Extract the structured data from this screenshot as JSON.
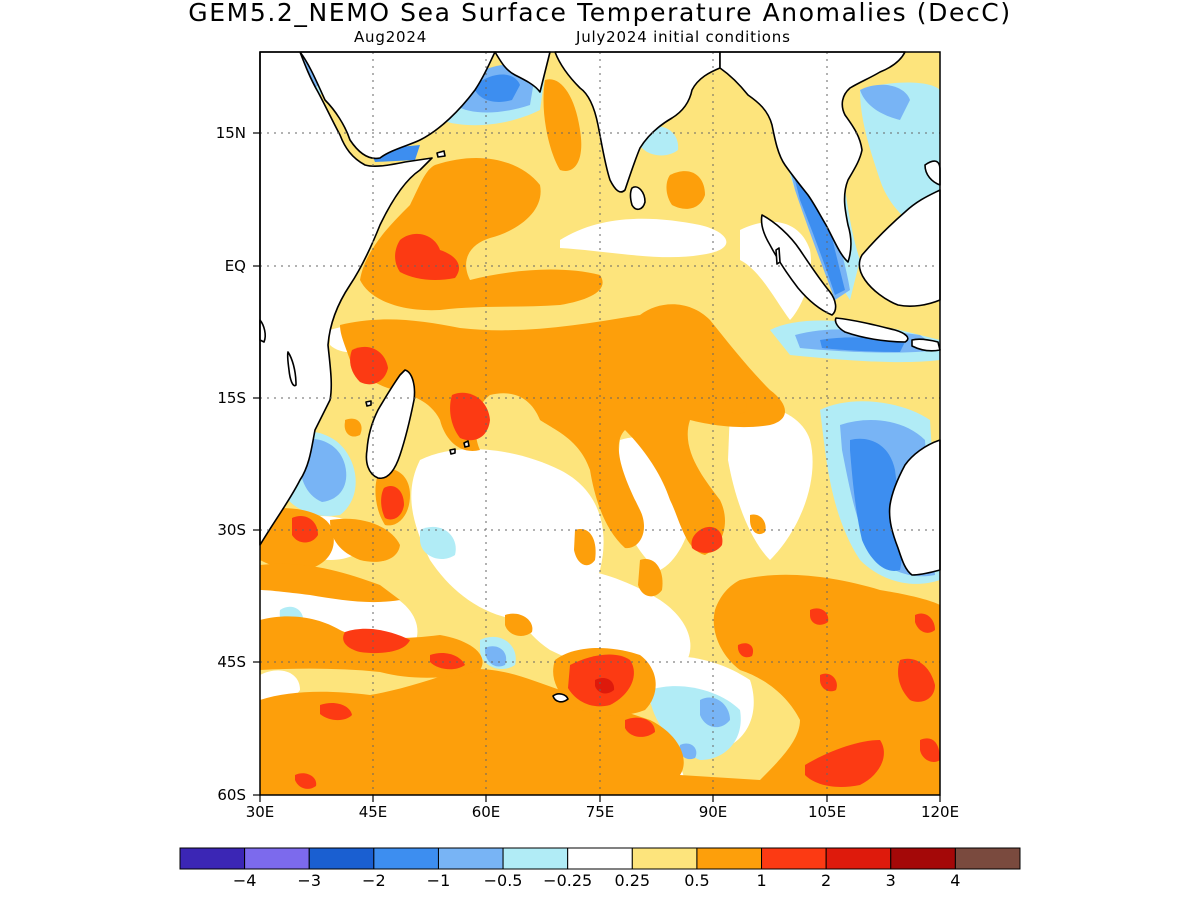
{
  "title": "GEM5.2_NEMO Sea Surface Temperature Anomalies (DecC)",
  "subtitle_left": "Aug2024",
  "subtitle_right": "July2024 initial conditions",
  "axes": {
    "lon_ticks": [
      "30E",
      "45E",
      "60E",
      "75E",
      "90E",
      "105E",
      "120E"
    ],
    "lat_ticks": [
      "15N",
      "EQ",
      "15S",
      "30S",
      "45S",
      "60S"
    ],
    "lon_range": [
      30,
      120
    ],
    "lat_range": [
      -60,
      24
    ]
  },
  "colorbar": {
    "colors": [
      "#3b26b5",
      "#7c6aed",
      "#1a5fd1",
      "#3d8ef0",
      "#78b4f5",
      "#b1ecf6",
      "#ffffff",
      "#fde47c",
      "#fd9f0b",
      "#fc3a13",
      "#de1a0c",
      "#a40808",
      "#7a4a3e"
    ],
    "labels": [
      "−4",
      "−3",
      "−2",
      "−1",
      "−0.5",
      "−0.25",
      "0.25",
      "0.5",
      "1",
      "2",
      "3",
      "4"
    ]
  }
}
